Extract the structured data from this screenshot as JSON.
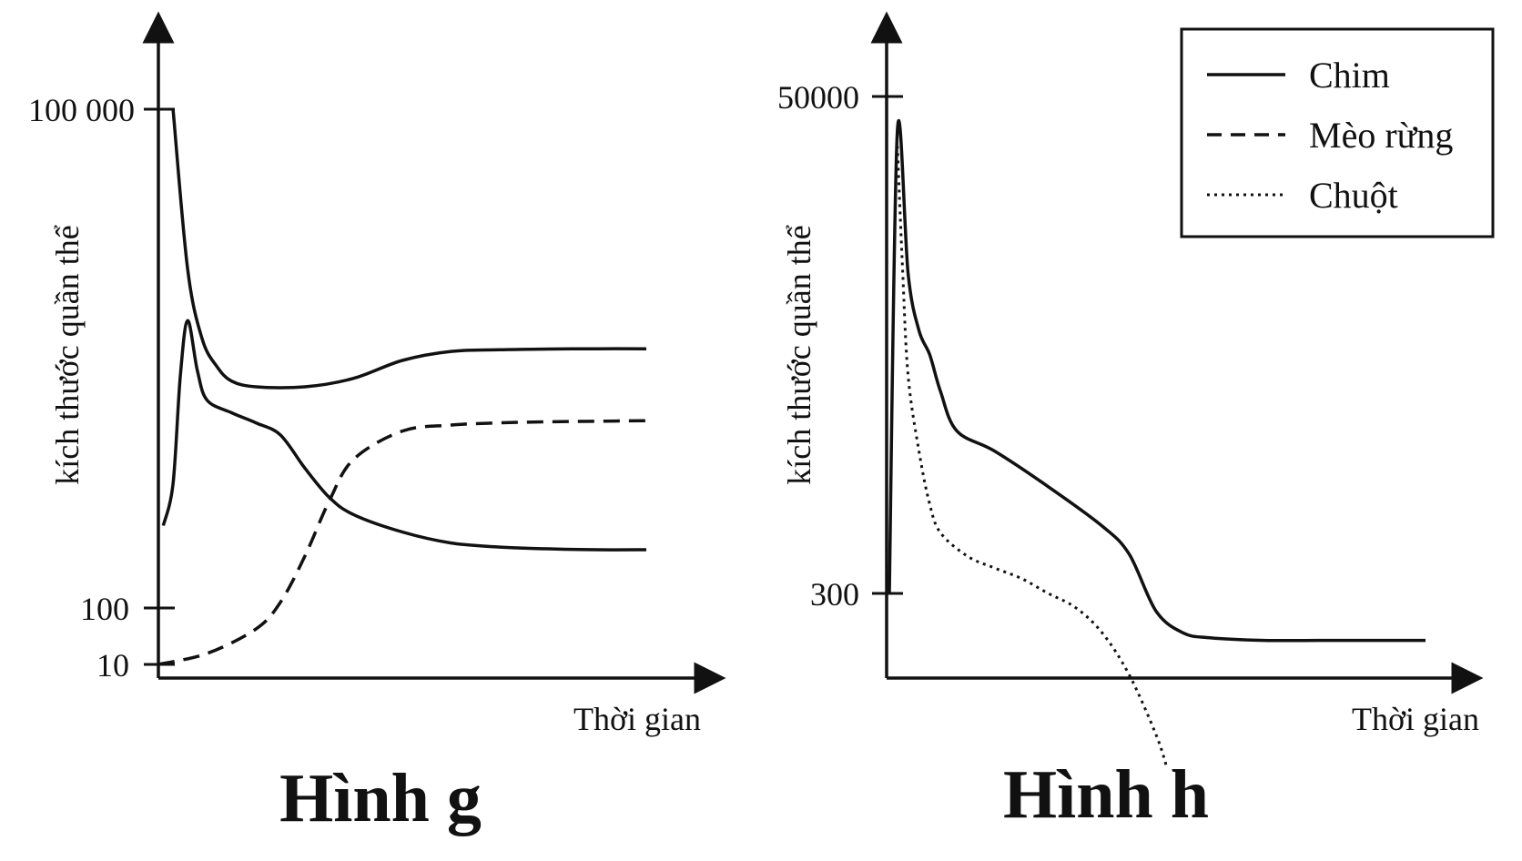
{
  "chart_data": [
    {
      "id": "g",
      "type": "line",
      "caption": "Hình g",
      "xlabel": "Thời gian",
      "ylabel": "kích thước quần thể",
      "y_ticks": [
        {
          "value": 100000,
          "label": "100 000"
        },
        {
          "value": 100,
          "label": "100"
        },
        {
          "value": 10,
          "label": "10"
        }
      ],
      "y_scale": "log",
      "xlim": [
        0,
        100
      ],
      "series": [
        {
          "key": "chim",
          "style": "solid",
          "color": "#111111",
          "x": [
            3,
            6,
            9,
            12,
            15,
            20,
            30,
            40,
            50,
            60,
            70,
            80,
            90,
            100
          ],
          "y": [
            100000,
            7000,
            2200,
            1400,
            1100,
            1000,
            1000,
            1150,
            1550,
            1800,
            1850,
            1870,
            1880,
            1880
          ]
        },
        {
          "key": "meo_rung",
          "style": "dashed",
          "color": "#111111",
          "x": [
            0,
            10,
            20,
            25,
            30,
            35,
            40,
            50,
            60,
            70,
            80,
            90,
            100
          ],
          "y": [
            10,
            12,
            18,
            28,
            60,
            150,
            300,
            480,
            530,
            550,
            560,
            565,
            570
          ]
        },
        {
          "key": "chuot",
          "style": "dotted_as_solid",
          "color": "#111111",
          "x": [
            1,
            3,
            4.5,
            6,
            8,
            10,
            15,
            20,
            25,
            30,
            35,
            40,
            50,
            60,
            70,
            80,
            90,
            100
          ],
          "y": [
            100,
            200,
            1200,
            3000,
            1300,
            800,
            650,
            550,
            450,
            260,
            160,
            120,
            90,
            75,
            70,
            68,
            67,
            67
          ]
        }
      ]
    },
    {
      "id": "h",
      "type": "line",
      "caption": "Hình h",
      "xlabel": "Thời gian",
      "ylabel": "kích thước quần thể",
      "y_ticks": [
        {
          "value": 50000,
          "label": "50000"
        },
        {
          "value": 300,
          "label": "300"
        }
      ],
      "y_scale": "log",
      "xlim": [
        0,
        100
      ],
      "series": [
        {
          "key": "chim",
          "style": "solid",
          "color": "#111111",
          "x": [
            0.5,
            2,
            4,
            6,
            8,
            10,
            13,
            20,
            30,
            40,
            45,
            50,
            55,
            60,
            70,
            80,
            90,
            100
          ],
          "y": [
            300,
            35000,
            8000,
            4500,
            3500,
            2400,
            1600,
            1300,
            900,
            600,
            450,
            250,
            200,
            190,
            185,
            185,
            185,
            185
          ]
        },
        {
          "key": "chuot",
          "style": "dotted",
          "color": "#111111",
          "x": [
            2,
            3,
            4,
            6,
            8,
            10,
            15,
            20,
            25,
            30,
            35,
            40,
            45,
            50,
            52
          ],
          "y": [
            30000,
            8000,
            2800,
            1300,
            750,
            560,
            440,
            390,
            350,
            300,
            260,
            200,
            130,
            70,
            50
          ]
        }
      ]
    }
  ],
  "legend": {
    "position": "top-right",
    "items": [
      {
        "label": "Chim",
        "style": "solid"
      },
      {
        "label": "Mèo rừng",
        "style": "dashed"
      },
      {
        "label": "Chuột",
        "style": "dotted"
      }
    ]
  }
}
